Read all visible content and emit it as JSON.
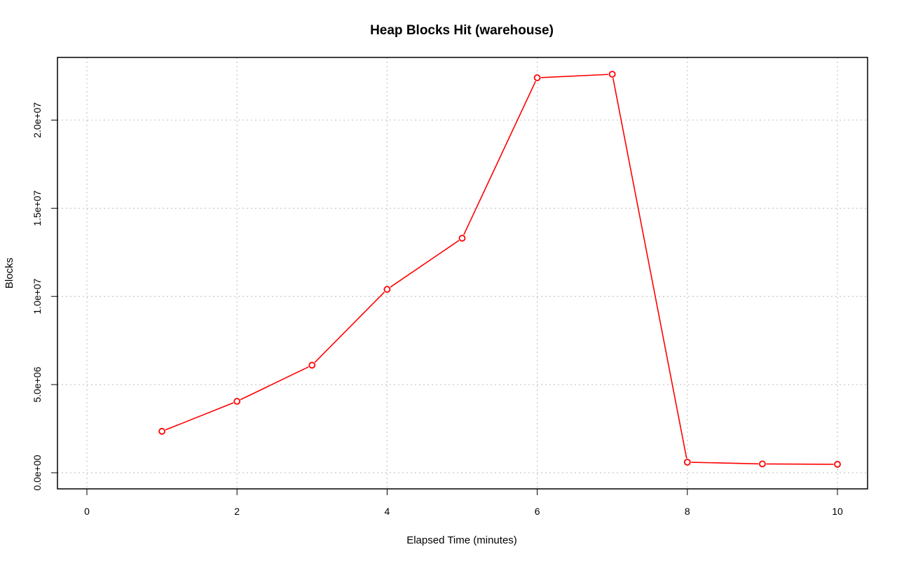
{
  "chart_data": {
    "type": "line",
    "title": "Heap Blocks Hit (warehouse)",
    "xlabel": "Elapsed Time (minutes)",
    "ylabel": "Blocks",
    "xlim": [
      0,
      10
    ],
    "ylim": [
      0,
      22600000
    ],
    "x_ticks": [
      0,
      2,
      4,
      6,
      8,
      10
    ],
    "x_tick_labels": [
      "0",
      "2",
      "4",
      "6",
      "8",
      "10"
    ],
    "y_ticks": [
      0,
      5000000,
      10000000,
      15000000,
      20000000
    ],
    "y_tick_labels": [
      "0.0e+00",
      "5.0e+06",
      "1.0e+07",
      "1.5e+07",
      "2.0e+07"
    ],
    "grid": true,
    "color": "#ff0000",
    "series": [
      {
        "x": [
          1,
          2,
          3,
          4,
          5,
          6,
          7,
          8,
          9,
          10
        ],
        "values": [
          2350000,
          4050000,
          6100000,
          10400000,
          13300000,
          22400000,
          22600000,
          600000,
          500000,
          480000
        ]
      }
    ]
  }
}
